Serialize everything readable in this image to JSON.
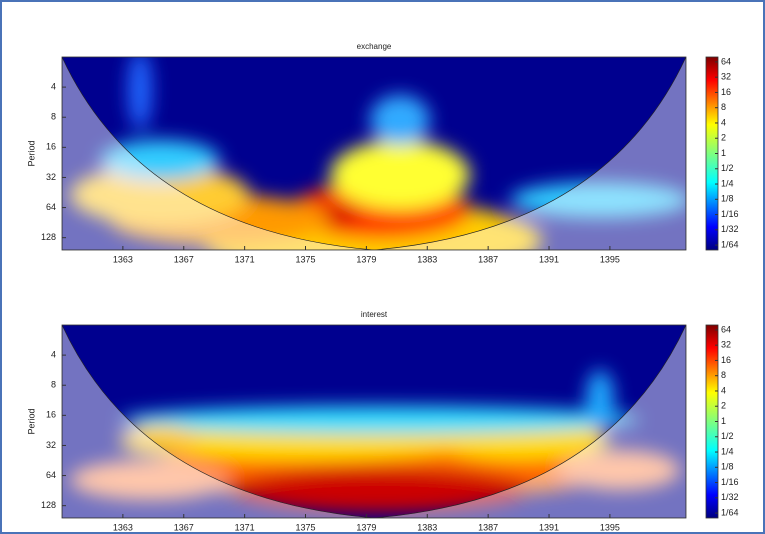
{
  "chart_data": [
    {
      "type": "heatmap",
      "title": "exchange",
      "ylabel": "Period",
      "xlim": [
        1359,
        1400
      ],
      "xticks": [
        1363,
        1367,
        1371,
        1375,
        1379,
        1383,
        1387,
        1391,
        1395
      ],
      "ylim": [
        2,
        170
      ],
      "yticks": [
        4,
        8,
        16,
        32,
        64,
        128
      ],
      "ylog": true,
      "yreversed": true,
      "clim": [
        0.0125,
        80
      ],
      "clog": true,
      "cticks": [
        64,
        32,
        16,
        8,
        4,
        2,
        1,
        {
          "value": 0.5,
          "label": "1/2"
        },
        {
          "value": 0.25,
          "label": "1/4"
        },
        {
          "value": 0.125,
          "label": "1/8"
        },
        {
          "value": 0.0625,
          "label": "1/16"
        },
        {
          "value": 0.03125,
          "label": "1/32"
        },
        {
          "value": 0.015625,
          "label": "1/64"
        }
      ]
    },
    {
      "type": "heatmap",
      "title": "interest",
      "ylabel": "Period",
      "xlim": [
        1359,
        1400
      ],
      "xticks": [
        1363,
        1367,
        1371,
        1375,
        1379,
        1383,
        1387,
        1391,
        1395
      ],
      "ylim": [
        2,
        170
      ],
      "yticks": [
        4,
        8,
        16,
        32,
        64,
        128
      ],
      "ylog": true,
      "yreversed": true,
      "clim": [
        0.0125,
        80
      ],
      "clog": true,
      "cticks": [
        64,
        32,
        16,
        8,
        4,
        2,
        1,
        {
          "value": 0.5,
          "label": "1/2"
        },
        {
          "value": 0.25,
          "label": "1/4"
        },
        {
          "value": 0.125,
          "label": "1/8"
        },
        {
          "value": 0.0625,
          "label": "1/16"
        },
        {
          "value": 0.03125,
          "label": "1/32"
        },
        {
          "value": 0.015625,
          "label": "1/64"
        }
      ]
    }
  ]
}
